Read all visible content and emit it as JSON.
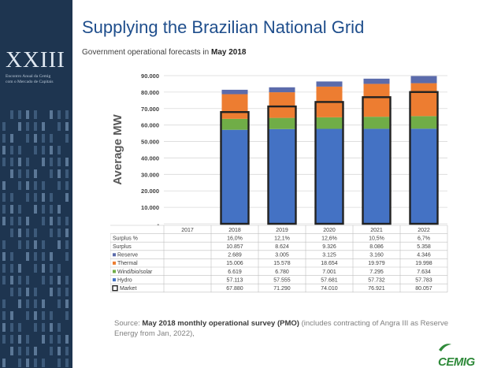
{
  "sidebar": {
    "roman": "XXIII",
    "event_line1": "Encontro Anual da Cemig",
    "event_line2": "com o Mercado de Capitais"
  },
  "slide": {
    "title": "Supplying the Brazilian National Grid",
    "subtitle_prefix": "Government operational forecasts in ",
    "subtitle_bold": "May 2018"
  },
  "source": {
    "prefix": "Source: ",
    "bold": "May 2018 monthly operational survey (PMO)",
    "rest": " (includes contracting of Angra III as Reserve Energy from Jan, 2022),"
  },
  "logo": {
    "text": "CEMIG",
    "color": "#2f8a3a"
  },
  "chart_data": {
    "type": "bar",
    "stacked": true,
    "ylabel": "Average MW",
    "ylim": [
      0,
      90000
    ],
    "y_ticks": [
      "-",
      "10.000",
      "20.000",
      "30.000",
      "40.000",
      "50.000",
      "60.000",
      "70.000",
      "80.000",
      "90.000"
    ],
    "grid": true,
    "categories": [
      "2017",
      "2018",
      "2019",
      "2020",
      "2021",
      "2022"
    ],
    "series": [
      {
        "name": "Hydro",
        "color": "#4472c4",
        "values": [
          null,
          57113,
          57555,
          57681,
          57732,
          57783
        ],
        "labels": [
          "",
          "57.113",
          "57.555",
          "57.681",
          "57.732",
          "57.783"
        ]
      },
      {
        "name": "Wind/bio/solar",
        "color": "#70ad47",
        "values": [
          null,
          6619,
          6780,
          7001,
          7295,
          7634
        ],
        "labels": [
          "",
          "6.619",
          "6.780",
          "7.001",
          "7.295",
          "7.634"
        ]
      },
      {
        "name": "Thermal",
        "color": "#ed7d31",
        "values": [
          null,
          15006,
          15578,
          18654,
          19979,
          19998
        ],
        "labels": [
          "",
          "15.006",
          "15.578",
          "18.654",
          "19.979",
          "19.998"
        ]
      },
      {
        "name": "Reserve",
        "color": "#5b6bab",
        "values": [
          null,
          2689,
          3005,
          3125,
          3160,
          4346
        ],
        "labels": [
          "",
          "2.689",
          "3.005",
          "3.125",
          "3.160",
          "4.346"
        ]
      }
    ],
    "market": {
      "name": "Market",
      "color": "#222222",
      "values": [
        null,
        67880,
        71290,
        74010,
        76921,
        80057
      ],
      "labels": [
        "",
        "67.880",
        "71.290",
        "74.010",
        "76.921",
        "80.057"
      ]
    },
    "table_rows": [
      {
        "name": "Surplus %",
        "cells": [
          "",
          "16,0%",
          "12,1%",
          "12,6%",
          "10,5%",
          "6,7%"
        ]
      },
      {
        "name": "Surplus",
        "cells": [
          "",
          "10.857",
          "8.624",
          "9.326",
          "8.086",
          "5.358"
        ]
      },
      {
        "name": "Reserve",
        "marker": "#5b6bab",
        "cells": [
          "",
          "2.689",
          "3.005",
          "3.125",
          "3.160",
          "4.346"
        ]
      },
      {
        "name": "Thermal",
        "marker": "#ed7d31",
        "cells": [
          "",
          "15.006",
          "15.578",
          "18.654",
          "19.979",
          "19.998"
        ]
      },
      {
        "name": "Wind/bio/solar",
        "marker": "#70ad47",
        "cells": [
          "",
          "6.619",
          "6.780",
          "7.001",
          "7.295",
          "7.634"
        ]
      },
      {
        "name": "Hydro",
        "marker": "#4472c4",
        "cells": [
          "",
          "57.113",
          "57.555",
          "57.681",
          "57.732",
          "57.783"
        ]
      },
      {
        "name": "Market",
        "marker": "market",
        "cells": [
          "",
          "67.880",
          "71.290",
          "74.010",
          "76.921",
          "80.057"
        ]
      }
    ]
  }
}
